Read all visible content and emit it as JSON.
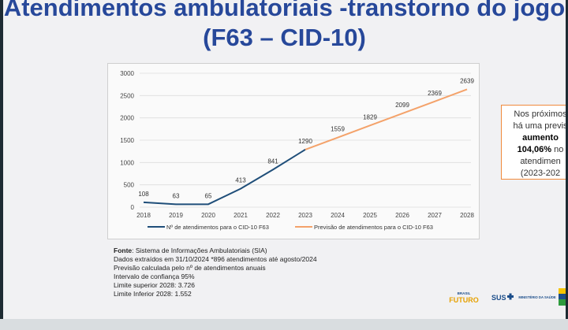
{
  "title": {
    "line1": "Atendimentos ambulatoriais -transtorno do jogo",
    "line2": "(F63 – CID-10)"
  },
  "chart_data": {
    "type": "line",
    "categories": [
      "2018",
      "2019",
      "2020",
      "2021",
      "2022",
      "2023",
      "2024",
      "2025",
      "2026",
      "2027",
      "2028"
    ],
    "yticks": [
      "0",
      "500",
      "1000",
      "1500",
      "2000",
      "2500",
      "3000"
    ],
    "ylim": [
      0,
      3000
    ],
    "series": [
      {
        "name": "Nº de atendimentos para o CID-10 F63",
        "color": "#1f4e79",
        "x": [
          "2018",
          "2019",
          "2020",
          "2021",
          "2022",
          "2023"
        ],
        "values": [
          108,
          63,
          65,
          413,
          841,
          1290
        ],
        "labels": [
          "108",
          "63",
          "65",
          "413",
          "841",
          "1290"
        ]
      },
      {
        "name": "Previsão de atendimentos para o CID-10 F63",
        "color": "#f4a26a",
        "x": [
          "2023",
          "2024",
          "2025",
          "2026",
          "2027",
          "2028"
        ],
        "values": [
          1290,
          1559,
          1829,
          2099,
          2369,
          2639
        ],
        "labels": [
          "",
          "1559",
          "1829",
          "2099",
          "2369",
          "2639"
        ]
      }
    ],
    "legend_position": "bottom",
    "grid": true
  },
  "callout": {
    "line1": "Nos próximos",
    "line2": "há uma previs",
    "line3": "aumento",
    "line4": "104,06%",
    "line4b": " no",
    "line5": "atendimen",
    "line6": "(2023-202"
  },
  "notes": {
    "fonte_label": "Fonte",
    "fonte_text": ": Sistema de Informações Ambulatoriais (SIA)",
    "line2": "Dados extraídos em 31/10/2024 *896 atendimentos até agosto/2024",
    "line3": "Previsão calculada pelo nº de atendimentos anuais",
    "line4": "Intervalo de confiança 95%",
    "line5": "Limite superior 2028: 3.726",
    "line6": "Limite Inferior 2028: 1.552"
  },
  "logos": {
    "gov": "BRASIL",
    "gov2": "FUTURO",
    "sus": "SUS",
    "ms": "MINISTÉRIO DA SAÚDE"
  },
  "icons": {
    "logo_gov": "brasil-futuro-logo",
    "logo_sus": "sus-logo",
    "logo_ms": "ministerio-saude-logo"
  }
}
